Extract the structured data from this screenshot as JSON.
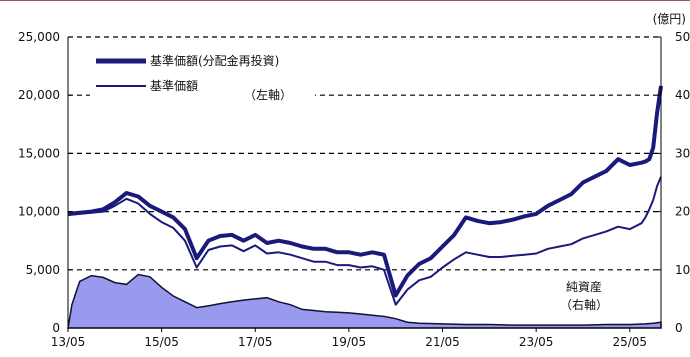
{
  "chart_data": {
    "type": "line",
    "right_axis_unit": "(億円)",
    "left_axis": {
      "ylim": [
        0,
        25000
      ],
      "ticks": [
        "0",
        "5,000",
        "10,000",
        "15,000",
        "20,000",
        "25,000"
      ]
    },
    "right_axis": {
      "ylim": [
        0,
        500
      ],
      "ticks": [
        "0",
        "10",
        "20",
        "30",
        "40",
        "50"
      ]
    },
    "x_ticks": [
      "13/05",
      "15/05",
      "17/05",
      "19/05",
      "21/05",
      "23/05",
      "25/05"
    ],
    "xlim": [
      0,
      152
    ],
    "grid": "horizontal dashed",
    "legend_placement": "top-left",
    "legend": [
      {
        "label": "基準価額(分配金再投資)",
        "style": "thick"
      },
      {
        "label": "基準価額",
        "style": "thin"
      }
    ],
    "annotations": {
      "left_axis_note": "（左軸）",
      "nav_label": "純資産",
      "right_axis_note": "（右軸）"
    },
    "colors": {
      "line": "#1a1a7a",
      "area_fill": "#9999ee",
      "area_stroke": "#111133"
    },
    "series": [
      {
        "name": "基準価額(分配金再投資)",
        "axis": "left",
        "x": [
          0,
          3,
          6,
          9,
          12,
          15,
          18,
          21,
          24,
          27,
          30,
          33,
          36,
          39,
          42,
          45,
          48,
          51,
          54,
          57,
          60,
          63,
          66,
          69,
          72,
          75,
          78,
          81,
          84,
          87,
          90,
          93,
          96,
          99,
          102,
          105,
          108,
          111,
          114,
          117,
          120,
          123,
          126,
          129,
          132,
          135,
          138,
          141,
          144,
          147,
          148,
          149,
          150,
          151,
          152
        ],
        "y": [
          9800,
          9900,
          10000,
          10200,
          10800,
          11600,
          11300,
          10500,
          10000,
          9500,
          8500,
          6000,
          7500,
          7900,
          8000,
          7500,
          8000,
          7300,
          7500,
          7300,
          7000,
          6800,
          6800,
          6500,
          6500,
          6300,
          6500,
          6300,
          2800,
          4500,
          5500,
          6000,
          7000,
          8000,
          9500,
          9200,
          9000,
          9100,
          9300,
          9600,
          9800,
          10500,
          11000,
          11500,
          12500,
          13000,
          13500,
          14500,
          14000,
          14200,
          14300,
          14500,
          15500,
          18500,
          20800
        ]
      },
      {
        "name": "基準価額",
        "axis": "left",
        "x": [
          0,
          3,
          6,
          9,
          12,
          15,
          18,
          21,
          24,
          27,
          30,
          33,
          36,
          39,
          42,
          45,
          48,
          51,
          54,
          57,
          60,
          63,
          66,
          69,
          72,
          75,
          78,
          81,
          84,
          87,
          90,
          93,
          96,
          99,
          102,
          105,
          108,
          111,
          114,
          117,
          120,
          123,
          126,
          129,
          132,
          135,
          138,
          141,
          144,
          147,
          148,
          149,
          150,
          151,
          152
        ],
        "y": [
          9700,
          9800,
          9900,
          10000,
          10500,
          11100,
          10700,
          9800,
          9100,
          8600,
          7500,
          5200,
          6700,
          7000,
          7100,
          6600,
          7100,
          6400,
          6500,
          6300,
          6000,
          5700,
          5700,
          5400,
          5400,
          5200,
          5300,
          5000,
          2000,
          3300,
          4100,
          4400,
          5200,
          5900,
          6500,
          6300,
          6100,
          6100,
          6200,
          6300,
          6400,
          6800,
          7000,
          7200,
          7700,
          8000,
          8300,
          8700,
          8500,
          9000,
          9500,
          10200,
          11000,
          12200,
          13000
        ]
      },
      {
        "name": "純資産",
        "axis": "right",
        "type": "area",
        "x": [
          0,
          1,
          3,
          6,
          9,
          12,
          15,
          18,
          21,
          24,
          27,
          30,
          33,
          36,
          39,
          42,
          45,
          48,
          51,
          54,
          57,
          60,
          63,
          66,
          69,
          72,
          75,
          78,
          81,
          84,
          87,
          90,
          96,
          102,
          108,
          114,
          120,
          126,
          132,
          138,
          144,
          148,
          150,
          152
        ],
        "y": [
          0,
          40,
          80,
          90,
          87,
          78,
          75,
          92,
          88,
          70,
          55,
          45,
          35,
          38,
          42,
          45,
          48,
          50,
          52,
          45,
          40,
          32,
          30,
          28,
          27,
          26,
          24,
          22,
          20,
          16,
          10,
          8,
          7,
          6,
          6,
          5,
          5,
          5,
          5,
          6,
          6,
          7,
          8,
          10
        ]
      }
    ]
  }
}
